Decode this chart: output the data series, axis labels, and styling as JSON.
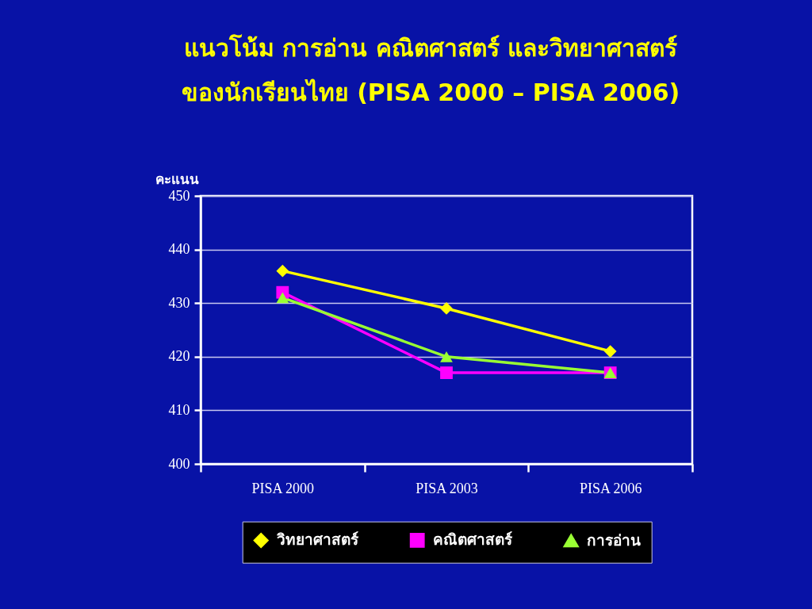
{
  "chart_data": {
    "type": "line",
    "title": "แนวโน้ม การอ่าน คณิตศาสตร์ และวิทยาศาสตร์\nของนักเรียนไทย (PISA 2000 – PISA 2006)",
    "ylabel": "คะแนน",
    "categories": [
      "PISA 2000",
      "PISA 2003",
      "PISA 2006"
    ],
    "series": [
      {
        "name": "วิทยาศาสตร์",
        "color": "#ffff00",
        "marker": "diamond",
        "values": [
          436,
          429,
          421
        ]
      },
      {
        "name": "คณิตศาสตร์",
        "color": "#ff00ff",
        "marker": "square",
        "values": [
          432,
          417,
          417
        ]
      },
      {
        "name": "การอ่าน",
        "color": "#99ff33",
        "marker": "triangle",
        "values": [
          431,
          420,
          417
        ]
      }
    ],
    "ylim": [
      400,
      450
    ],
    "yticks": [
      400,
      410,
      420,
      430,
      440,
      450
    ],
    "grid": "y",
    "legend": "bottom",
    "line_style": "solid"
  }
}
